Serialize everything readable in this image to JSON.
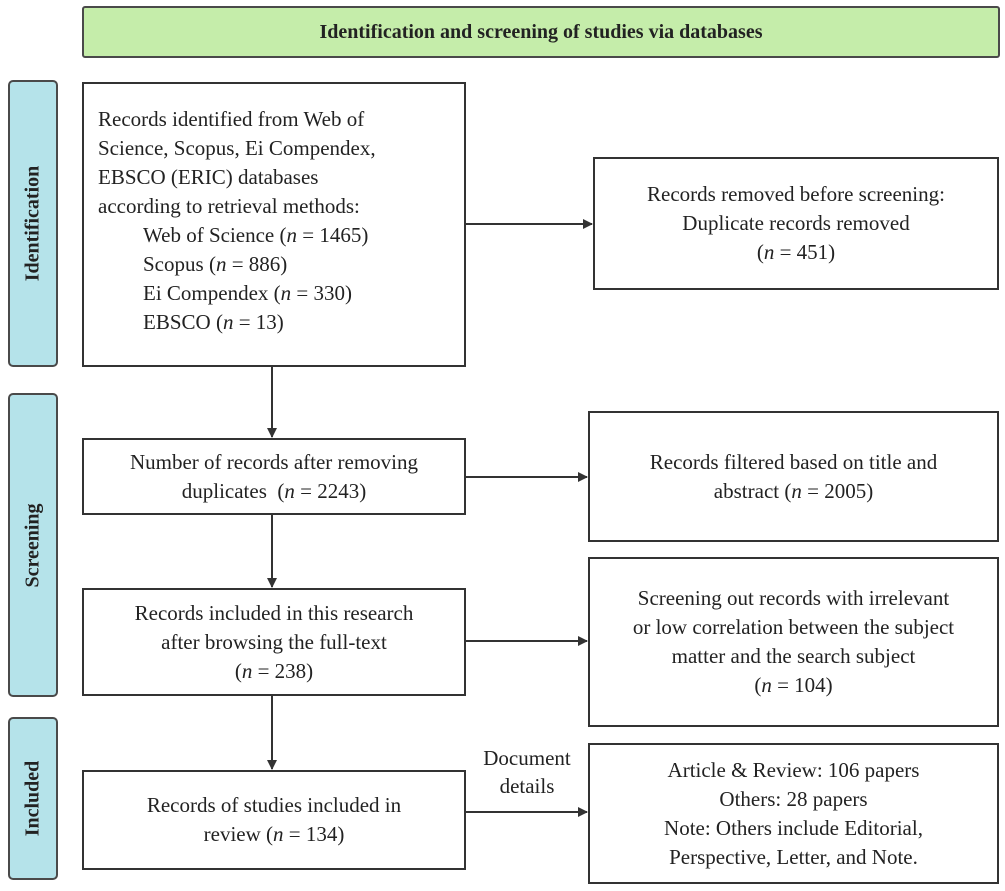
{
  "header": "Identification and screening of studies via databases",
  "stages": {
    "identification": "Identification",
    "screening": "Screening",
    "included": "Included"
  },
  "identified": {
    "intro": [
      "Records identified from Web of",
      "Science, Scopus, Ei Compendex,",
      "EBSCO (ERIC) databases",
      "according to retrieval methods:"
    ],
    "sources": [
      {
        "name": "Web of Science",
        "n": "1465"
      },
      {
        "name": "Scopus",
        "n": "886"
      },
      {
        "name": "Ei Compendex",
        "n": "330"
      },
      {
        "name": "EBSCO",
        "n": "13"
      }
    ]
  },
  "removed": {
    "lines": [
      "Records removed before screening:",
      "Duplicate records removed"
    ],
    "n": "451"
  },
  "after_dup": {
    "lines": [
      "Number of records after removing",
      "duplicates"
    ],
    "n": "2243"
  },
  "filtered": {
    "lines": [
      "Records filtered based on title and",
      "abstract"
    ],
    "n": "2005"
  },
  "fulltext": {
    "lines": [
      "Records included in this research",
      "after browsing the full-text"
    ],
    "n": "238"
  },
  "excluded": {
    "lines": [
      "Screening out records with irrelevant",
      "or low correlation between the subject",
      "matter and the search subject"
    ],
    "n": "104"
  },
  "included": {
    "lines": [
      "Records of studies included in",
      "review"
    ],
    "n": "134"
  },
  "doc_label": [
    "Document",
    "details"
  ],
  "details": [
    "Article & Review: 106 papers",
    "Others: 28 papers",
    "Note: Others include Editorial,",
    "Perspective, Letter, and Note."
  ],
  "n_symbol": "n"
}
